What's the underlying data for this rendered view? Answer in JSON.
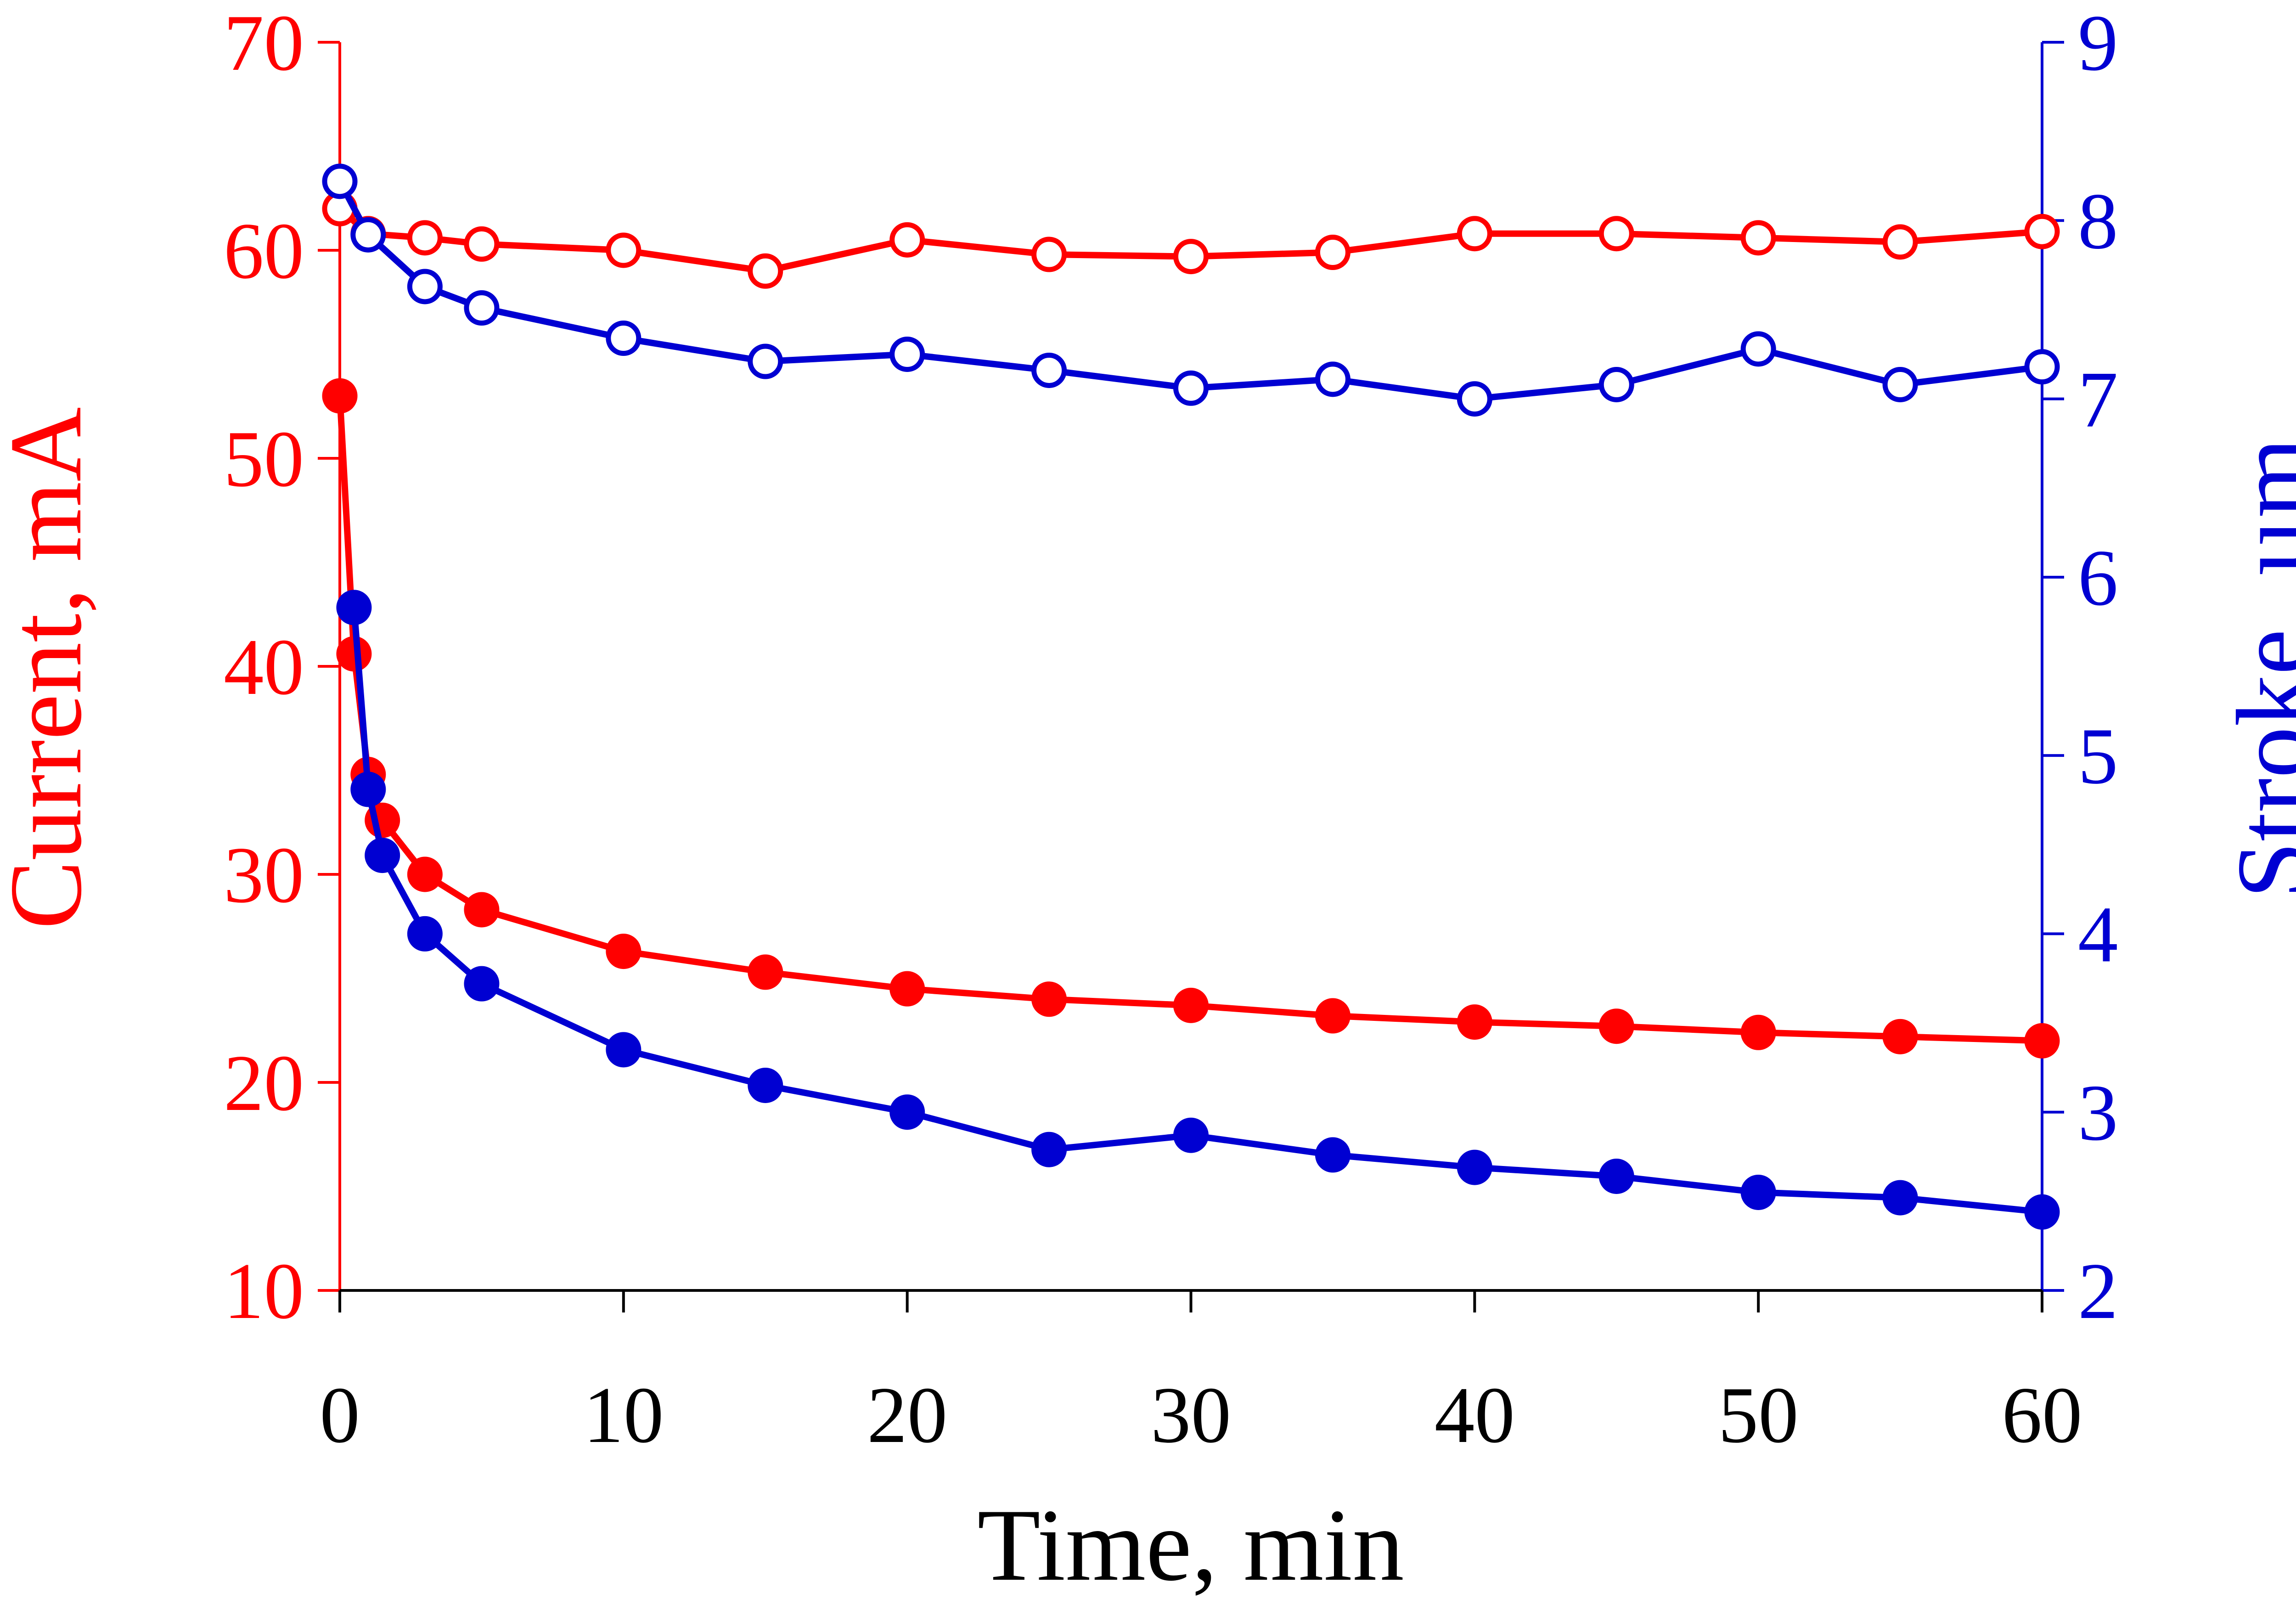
{
  "colors": {
    "current": "#ff0000",
    "stroke": "#0000d2",
    "xaxis": "#000000",
    "background": "#ffffff"
  },
  "chart_data": {
    "type": "line",
    "title": "",
    "xlabel": "Time, min",
    "ylabel_left": "Current, mA",
    "ylabel_right": "Stroke, µm",
    "xlim": [
      0,
      60
    ],
    "ylim_left": [
      10,
      70
    ],
    "ylim_right": [
      2,
      9
    ],
    "x_ticks": [
      "0",
      "10",
      "20",
      "30",
      "40",
      "50",
      "60"
    ],
    "y_left_ticks": [
      "10",
      "20",
      "30",
      "40",
      "50",
      "60",
      "70"
    ],
    "y_right_ticks": [
      "2",
      "3",
      "4",
      "5",
      "6",
      "7",
      "8",
      "9"
    ],
    "grid": false,
    "legend": "none",
    "series": [
      {
        "name": "Current (open circles)",
        "axis": "left",
        "color_key": "current",
        "marker": "open-circle",
        "x": [
          0,
          1,
          3,
          5,
          10,
          15,
          20,
          25,
          30,
          35,
          40,
          45,
          50,
          55,
          60
        ],
        "y": [
          62.0,
          60.8,
          60.6,
          60.3,
          60.0,
          59.0,
          60.5,
          59.8,
          59.7,
          59.9,
          60.8,
          60.8,
          60.6,
          60.4,
          60.9
        ]
      },
      {
        "name": "Current (filled circles)",
        "axis": "left",
        "color_key": "current",
        "marker": "filled-circle",
        "x": [
          0,
          0.5,
          1,
          1.5,
          3,
          5,
          10,
          15,
          20,
          25,
          30,
          35,
          40,
          45,
          50,
          55,
          60
        ],
        "y": [
          53.0,
          40.6,
          34.8,
          32.6,
          30.0,
          28.3,
          26.3,
          25.3,
          24.5,
          24.0,
          23.7,
          23.2,
          22.9,
          22.7,
          22.4,
          22.2,
          22.0
        ]
      },
      {
        "name": "Stroke (open circles)",
        "axis": "right",
        "color_key": "stroke",
        "marker": "open-circle",
        "x": [
          0,
          1,
          3,
          5,
          10,
          15,
          20,
          25,
          30,
          35,
          40,
          45,
          50,
          55,
          60
        ],
        "y": [
          8.22,
          7.92,
          7.63,
          7.51,
          7.34,
          7.21,
          7.25,
          7.16,
          7.06,
          7.11,
          7.0,
          7.08,
          7.28,
          7.08,
          7.18
        ]
      },
      {
        "name": "Stroke (filled circles)",
        "axis": "right",
        "color_key": "stroke",
        "marker": "filled-circle",
        "x": [
          0.5,
          1,
          1.5,
          3,
          5,
          10,
          15,
          20,
          25,
          30,
          35,
          40,
          45,
          50,
          55,
          60
        ],
        "y": [
          5.83,
          4.81,
          4.44,
          4.0,
          3.72,
          3.35,
          3.15,
          3.0,
          2.79,
          2.87,
          2.76,
          2.69,
          2.64,
          2.55,
          2.52,
          2.44
        ]
      }
    ]
  }
}
